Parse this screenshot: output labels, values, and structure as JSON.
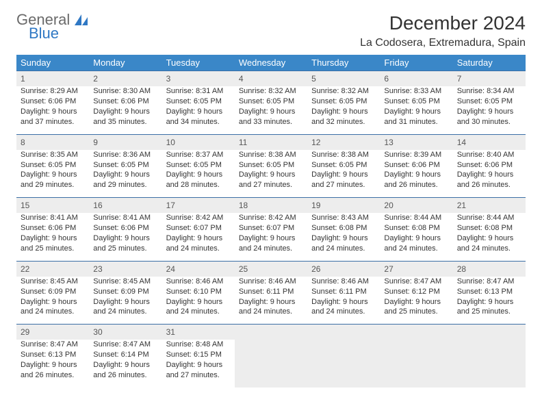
{
  "brand": {
    "line1": "General",
    "line2": "Blue",
    "shape_color": "#2f78c4"
  },
  "title": "December 2024",
  "location": "La Codosera, Extremadura, Spain",
  "colors": {
    "header_bg": "#3a87c8",
    "header_text": "#ffffff",
    "daynum_bg": "#ededed",
    "row_border": "#3a6ea5",
    "text": "#333333"
  },
  "typography": {
    "title_fontsize": 28,
    "location_fontsize": 16,
    "dayheader_fontsize": 13,
    "cell_fontsize": 11
  },
  "day_headers": [
    "Sunday",
    "Monday",
    "Tuesday",
    "Wednesday",
    "Thursday",
    "Friday",
    "Saturday"
  ],
  "weeks": [
    {
      "nums": [
        "1",
        "2",
        "3",
        "4",
        "5",
        "6",
        "7"
      ],
      "cells": [
        {
          "sunrise": "8:29 AM",
          "sunset": "6:06 PM",
          "dl1": "Daylight: 9 hours",
          "dl2": "and 37 minutes."
        },
        {
          "sunrise": "8:30 AM",
          "sunset": "6:06 PM",
          "dl1": "Daylight: 9 hours",
          "dl2": "and 35 minutes."
        },
        {
          "sunrise": "8:31 AM",
          "sunset": "6:05 PM",
          "dl1": "Daylight: 9 hours",
          "dl2": "and 34 minutes."
        },
        {
          "sunrise": "8:32 AM",
          "sunset": "6:05 PM",
          "dl1": "Daylight: 9 hours",
          "dl2": "and 33 minutes."
        },
        {
          "sunrise": "8:32 AM",
          "sunset": "6:05 PM",
          "dl1": "Daylight: 9 hours",
          "dl2": "and 32 minutes."
        },
        {
          "sunrise": "8:33 AM",
          "sunset": "6:05 PM",
          "dl1": "Daylight: 9 hours",
          "dl2": "and 31 minutes."
        },
        {
          "sunrise": "8:34 AM",
          "sunset": "6:05 PM",
          "dl1": "Daylight: 9 hours",
          "dl2": "and 30 minutes."
        }
      ]
    },
    {
      "nums": [
        "8",
        "9",
        "10",
        "11",
        "12",
        "13",
        "14"
      ],
      "cells": [
        {
          "sunrise": "8:35 AM",
          "sunset": "6:05 PM",
          "dl1": "Daylight: 9 hours",
          "dl2": "and 29 minutes."
        },
        {
          "sunrise": "8:36 AM",
          "sunset": "6:05 PM",
          "dl1": "Daylight: 9 hours",
          "dl2": "and 29 minutes."
        },
        {
          "sunrise": "8:37 AM",
          "sunset": "6:05 PM",
          "dl1": "Daylight: 9 hours",
          "dl2": "and 28 minutes."
        },
        {
          "sunrise": "8:38 AM",
          "sunset": "6:05 PM",
          "dl1": "Daylight: 9 hours",
          "dl2": "and 27 minutes."
        },
        {
          "sunrise": "8:38 AM",
          "sunset": "6:05 PM",
          "dl1": "Daylight: 9 hours",
          "dl2": "and 27 minutes."
        },
        {
          "sunrise": "8:39 AM",
          "sunset": "6:06 PM",
          "dl1": "Daylight: 9 hours",
          "dl2": "and 26 minutes."
        },
        {
          "sunrise": "8:40 AM",
          "sunset": "6:06 PM",
          "dl1": "Daylight: 9 hours",
          "dl2": "and 26 minutes."
        }
      ]
    },
    {
      "nums": [
        "15",
        "16",
        "17",
        "18",
        "19",
        "20",
        "21"
      ],
      "cells": [
        {
          "sunrise": "8:41 AM",
          "sunset": "6:06 PM",
          "dl1": "Daylight: 9 hours",
          "dl2": "and 25 minutes."
        },
        {
          "sunrise": "8:41 AM",
          "sunset": "6:06 PM",
          "dl1": "Daylight: 9 hours",
          "dl2": "and 25 minutes."
        },
        {
          "sunrise": "8:42 AM",
          "sunset": "6:07 PM",
          "dl1": "Daylight: 9 hours",
          "dl2": "and 24 minutes."
        },
        {
          "sunrise": "8:42 AM",
          "sunset": "6:07 PM",
          "dl1": "Daylight: 9 hours",
          "dl2": "and 24 minutes."
        },
        {
          "sunrise": "8:43 AM",
          "sunset": "6:08 PM",
          "dl1": "Daylight: 9 hours",
          "dl2": "and 24 minutes."
        },
        {
          "sunrise": "8:44 AM",
          "sunset": "6:08 PM",
          "dl1": "Daylight: 9 hours",
          "dl2": "and 24 minutes."
        },
        {
          "sunrise": "8:44 AM",
          "sunset": "6:08 PM",
          "dl1": "Daylight: 9 hours",
          "dl2": "and 24 minutes."
        }
      ]
    },
    {
      "nums": [
        "22",
        "23",
        "24",
        "25",
        "26",
        "27",
        "28"
      ],
      "cells": [
        {
          "sunrise": "8:45 AM",
          "sunset": "6:09 PM",
          "dl1": "Daylight: 9 hours",
          "dl2": "and 24 minutes."
        },
        {
          "sunrise": "8:45 AM",
          "sunset": "6:09 PM",
          "dl1": "Daylight: 9 hours",
          "dl2": "and 24 minutes."
        },
        {
          "sunrise": "8:46 AM",
          "sunset": "6:10 PM",
          "dl1": "Daylight: 9 hours",
          "dl2": "and 24 minutes."
        },
        {
          "sunrise": "8:46 AM",
          "sunset": "6:11 PM",
          "dl1": "Daylight: 9 hours",
          "dl2": "and 24 minutes."
        },
        {
          "sunrise": "8:46 AM",
          "sunset": "6:11 PM",
          "dl1": "Daylight: 9 hours",
          "dl2": "and 24 minutes."
        },
        {
          "sunrise": "8:47 AM",
          "sunset": "6:12 PM",
          "dl1": "Daylight: 9 hours",
          "dl2": "and 25 minutes."
        },
        {
          "sunrise": "8:47 AM",
          "sunset": "6:13 PM",
          "dl1": "Daylight: 9 hours",
          "dl2": "and 25 minutes."
        }
      ]
    },
    {
      "nums": [
        "29",
        "30",
        "31",
        "",
        "",
        "",
        ""
      ],
      "cells": [
        {
          "sunrise": "8:47 AM",
          "sunset": "6:13 PM",
          "dl1": "Daylight: 9 hours",
          "dl2": "and 26 minutes."
        },
        {
          "sunrise": "8:47 AM",
          "sunset": "6:14 PM",
          "dl1": "Daylight: 9 hours",
          "dl2": "and 26 minutes."
        },
        {
          "sunrise": "8:48 AM",
          "sunset": "6:15 PM",
          "dl1": "Daylight: 9 hours",
          "dl2": "and 27 minutes."
        },
        null,
        null,
        null,
        null
      ]
    }
  ],
  "labels": {
    "sunrise": "Sunrise: ",
    "sunset": "Sunset: "
  }
}
